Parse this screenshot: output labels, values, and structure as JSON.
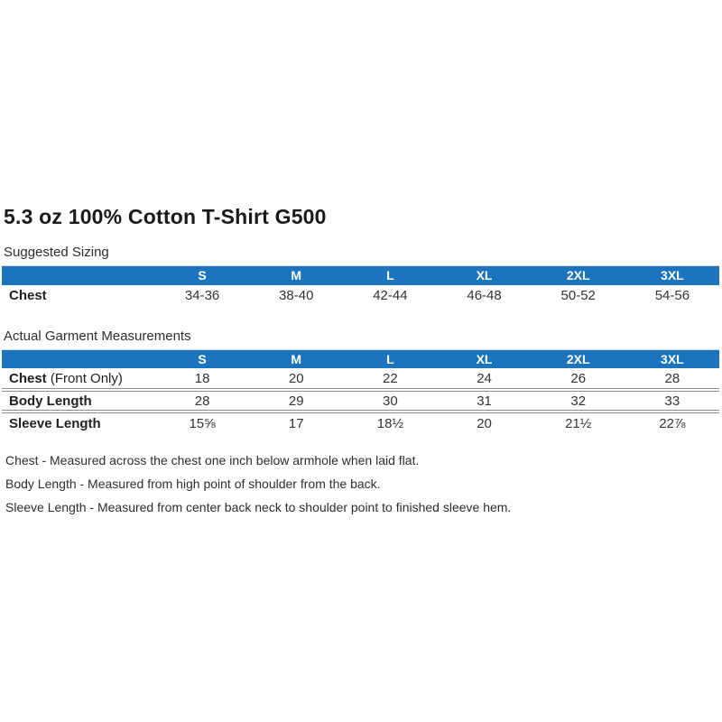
{
  "page": {
    "title": "5.3 oz 100% Cotton T-Shirt G500"
  },
  "colors": {
    "header_blue": "#1C75BC",
    "rule_gray": "#8c8c8c",
    "text": "#231F20"
  },
  "suggested_sizing": {
    "section_label": "Suggested Sizing",
    "columns": [
      "S",
      "M",
      "L",
      "XL",
      "2XL",
      "3XL"
    ],
    "rows": [
      {
        "label": "Chest",
        "label_suffix": "",
        "values": [
          "34-36",
          "38-40",
          "42-44",
          "46-48",
          "50-52",
          "54-56"
        ]
      }
    ]
  },
  "actual_measurements": {
    "section_label": "Actual Garment Measurements",
    "columns": [
      "S",
      "M",
      "L",
      "XL",
      "2XL",
      "3XL"
    ],
    "rows": [
      {
        "label": "Chest",
        "label_suffix": " (Front Only)",
        "values": [
          "18",
          "20",
          "22",
          "24",
          "26",
          "28"
        ]
      },
      {
        "label": "Body Length",
        "label_suffix": "",
        "values": [
          "28",
          "29",
          "30",
          "31",
          "32",
          "33"
        ]
      },
      {
        "label": "Sleeve Length",
        "label_suffix": "",
        "values": [
          "15⅝",
          "17",
          "18½",
          "20",
          "21½",
          "22⅞"
        ]
      }
    ]
  },
  "notes": [
    "Chest - Measured across the chest one inch below armhole when laid flat.",
    "Body Length - Measured from high point of shoulder from the back.",
    "Sleeve Length - Measured from center back neck to shoulder point to finished sleeve hem."
  ]
}
